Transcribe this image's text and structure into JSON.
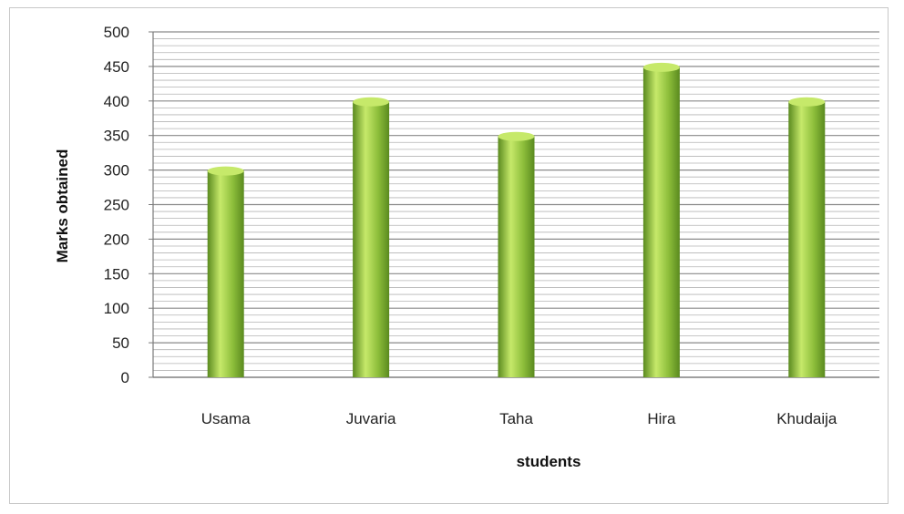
{
  "chart_data": {
    "type": "bar",
    "title": "",
    "xlabel": "students",
    "ylabel": "Marks obtained",
    "categories": [
      "Usama",
      "Juvaria",
      "Taha",
      "Hira",
      "Khudaija"
    ],
    "series": [
      {
        "values": [
          300,
          400,
          350,
          450,
          400
        ]
      }
    ],
    "ylim": [
      0,
      500
    ],
    "yticks": [
      0,
      50,
      100,
      150,
      200,
      250,
      300,
      350,
      400,
      450,
      500
    ],
    "minor_grid_step": 10,
    "grid": true,
    "legend": "none",
    "bar_color": "#8cbd3a",
    "bar_highlight_color": "#c6e96a",
    "bar_shadow_color": "#5a8a1f"
  }
}
